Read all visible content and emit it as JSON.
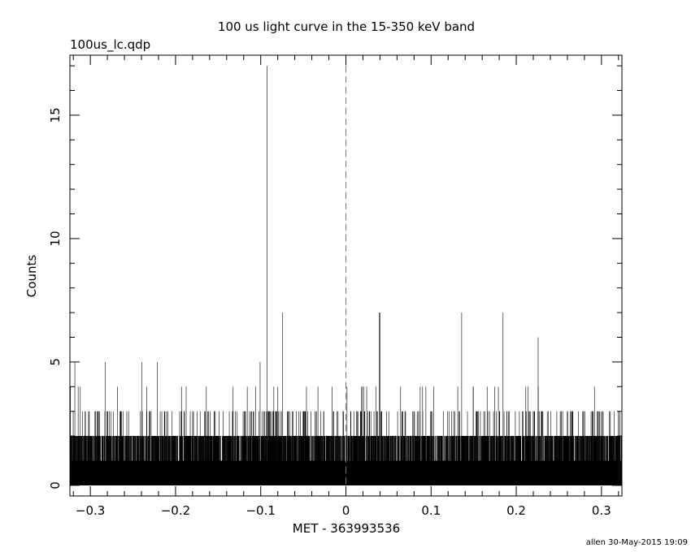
{
  "chart_data": {
    "type": "bar",
    "title": "100 us light curve in the 15-350 keV band",
    "file_label": "100us_lc.qdp",
    "xlabel": "MET - 363993536",
    "ylabel": "Counts",
    "footer": "allen 30-May-2015 19:09",
    "xlim": [
      -0.324,
      0.324
    ],
    "ylim": [
      -0.43,
      17.43
    ],
    "bin_width": 0.0001,
    "x_ticks": [
      -0.3,
      -0.2,
      -0.1,
      0,
      0.1,
      0.2,
      0.3
    ],
    "x_tick_labels": [
      "−0.3",
      "−0.2",
      "−0.1",
      "0",
      "0.1",
      "0.2",
      "0.3"
    ],
    "y_ticks": [
      0,
      5,
      10,
      15
    ],
    "y_tick_labels": [
      "0",
      "5",
      "10",
      "15"
    ],
    "reference_line_x": 0,
    "background_count_distribution": {
      "0": 0.002,
      "1": 0.66,
      "2": 0.295,
      "3": 0.038,
      "4": 0.005
    },
    "spikes": [
      {
        "x": -0.3185,
        "y": 5
      },
      {
        "x": -0.283,
        "y": 5
      },
      {
        "x": -0.24,
        "y": 5
      },
      {
        "x": -0.2216,
        "y": 5
      },
      {
        "x": -0.101,
        "y": 5
      },
      {
        "x": -0.0927,
        "y": 17
      },
      {
        "x": -0.0745,
        "y": 7
      },
      {
        "x": 0.039,
        "y": 7
      },
      {
        "x": 0.04,
        "y": 7
      },
      {
        "x": 0.1356,
        "y": 7
      },
      {
        "x": 0.1843,
        "y": 7
      },
      {
        "x": 0.2254,
        "y": 6
      }
    ],
    "colors": {
      "bars": "#000000",
      "reference_line": "#4a7fc8"
    }
  }
}
